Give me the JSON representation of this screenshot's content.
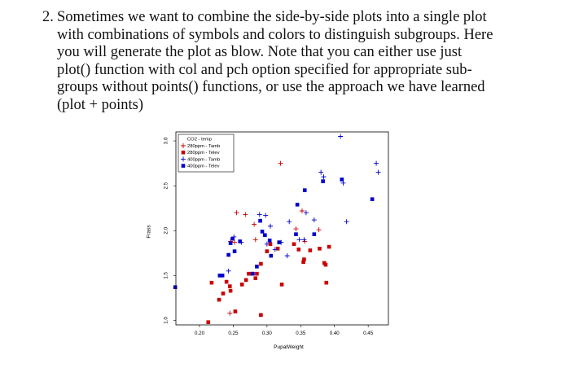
{
  "question": {
    "number": "2.",
    "lines": [
      "Sometimes we want to combine the side-by-side plots into a single plot",
      "with combinations of symbols and colors to distinguish subgroups. Here",
      "you will generate the plot as blow. Note that you can either use just",
      "plot() function with col and pch option specified for appropriate sub-",
      "groups without points() functions, or use the approach we have learned",
      "(plot + points)"
    ]
  },
  "colors": {
    "red": "#cc0000",
    "blue": "#0000cc",
    "frame": "#000000"
  },
  "chart_data": {
    "type": "scatter",
    "title": "",
    "xlabel": "PupalWeight",
    "ylabel": "Frass",
    "xlim": [
      0.165,
      0.48
    ],
    "ylim": [
      0.95,
      3.1
    ],
    "x_ticks": [
      "0.20",
      "0.25",
      "0.30",
      "0.35",
      "0.40",
      "0.45"
    ],
    "y_ticks": [
      "1.0",
      "1.5",
      "2.0",
      "2.5",
      "3.0"
    ],
    "legend": {
      "title": "CO2 - temp",
      "placement": "top-left",
      "entries": [
        "280ppm - Tamb",
        "280ppm - Telev",
        "400ppm - Tamb",
        "400ppm - Telev"
      ]
    },
    "series": [
      {
        "name": "280ppm - Tamb",
        "marker": "plus",
        "color": "#cc0000",
        "points": [
          [
            0.246,
            1.88
          ],
          [
            0.252,
            1.87
          ],
          [
            0.245,
            1.08
          ],
          [
            0.255,
            2.2
          ],
          [
            0.268,
            2.18
          ],
          [
            0.281,
            2.07
          ],
          [
            0.283,
            1.9
          ],
          [
            0.32,
            2.75
          ],
          [
            0.343,
            2.02
          ],
          [
            0.356,
            1.88
          ],
          [
            0.377,
            2.01
          ],
          [
            0.352,
            2.22
          ]
        ]
      },
      {
        "name": "280ppm - Telev",
        "marker": "square",
        "color": "#cc0000",
        "points": [
          [
            0.213,
            0.98
          ],
          [
            0.218,
            1.42
          ],
          [
            0.229,
            1.23
          ],
          [
            0.235,
            1.3
          ],
          [
            0.24,
            1.43
          ],
          [
            0.245,
            1.38
          ],
          [
            0.246,
            1.33
          ],
          [
            0.253,
            1.1
          ],
          [
            0.263,
            1.4
          ],
          [
            0.269,
            1.45
          ],
          [
            0.273,
            1.52
          ],
          [
            0.278,
            1.52
          ],
          [
            0.283,
            1.47
          ],
          [
            0.285,
            1.52
          ],
          [
            0.291,
            1.06
          ],
          [
            0.291,
            1.63
          ],
          [
            0.3,
            1.77
          ],
          [
            0.305,
            1.85
          ],
          [
            0.316,
            1.8
          ],
          [
            0.322,
            1.4
          ],
          [
            0.347,
            1.79
          ],
          [
            0.354,
            1.65
          ],
          [
            0.355,
            1.68
          ],
          [
            0.364,
            1.78
          ],
          [
            0.378,
            1.8
          ],
          [
            0.385,
            1.64
          ],
          [
            0.387,
            1.62
          ],
          [
            0.388,
            1.42
          ],
          [
            0.392,
            1.82
          ],
          [
            0.34,
            1.85
          ]
        ]
      },
      {
        "name": "400ppm - Tamb",
        "marker": "plus",
        "color": "#0000cc",
        "points": [
          [
            0.243,
            1.55
          ],
          [
            0.251,
            1.93
          ],
          [
            0.262,
            1.87
          ],
          [
            0.289,
            2.18
          ],
          [
            0.298,
            2.17
          ],
          [
            0.305,
            2.05
          ],
          [
            0.3,
            1.85
          ],
          [
            0.312,
            1.79
          ],
          [
            0.321,
            1.87
          ],
          [
            0.33,
            1.72
          ],
          [
            0.333,
            2.1
          ],
          [
            0.348,
            1.9
          ],
          [
            0.355,
            1.9
          ],
          [
            0.358,
            2.2
          ],
          [
            0.37,
            2.12
          ],
          [
            0.38,
            2.65
          ],
          [
            0.384,
            2.6
          ],
          [
            0.409,
            3.05
          ],
          [
            0.413,
            2.53
          ],
          [
            0.418,
            2.1
          ],
          [
            0.462,
            2.75
          ],
          [
            0.465,
            2.65
          ]
        ]
      },
      {
        "name": "400ppm - Telev",
        "marker": "square",
        "color": "#0000cc",
        "points": [
          [
            0.164,
            1.37
          ],
          [
            0.23,
            1.5
          ],
          [
            0.234,
            1.5
          ],
          [
            0.243,
            1.73
          ],
          [
            0.246,
            1.86
          ],
          [
            0.249,
            1.91
          ],
          [
            0.252,
            1.77
          ],
          [
            0.26,
            1.88
          ],
          [
            0.279,
            1.52
          ],
          [
            0.285,
            1.6
          ],
          [
            0.29,
            2.11
          ],
          [
            0.293,
            1.99
          ],
          [
            0.297,
            1.95
          ],
          [
            0.304,
            1.89
          ],
          [
            0.306,
            1.72
          ],
          [
            0.318,
            1.87
          ],
          [
            0.343,
            1.96
          ],
          [
            0.345,
            2.29
          ],
          [
            0.356,
            2.45
          ],
          [
            0.37,
            1.96
          ],
          [
            0.383,
            2.55
          ],
          [
            0.411,
            2.57
          ],
          [
            0.456,
            2.35
          ]
        ]
      }
    ]
  }
}
